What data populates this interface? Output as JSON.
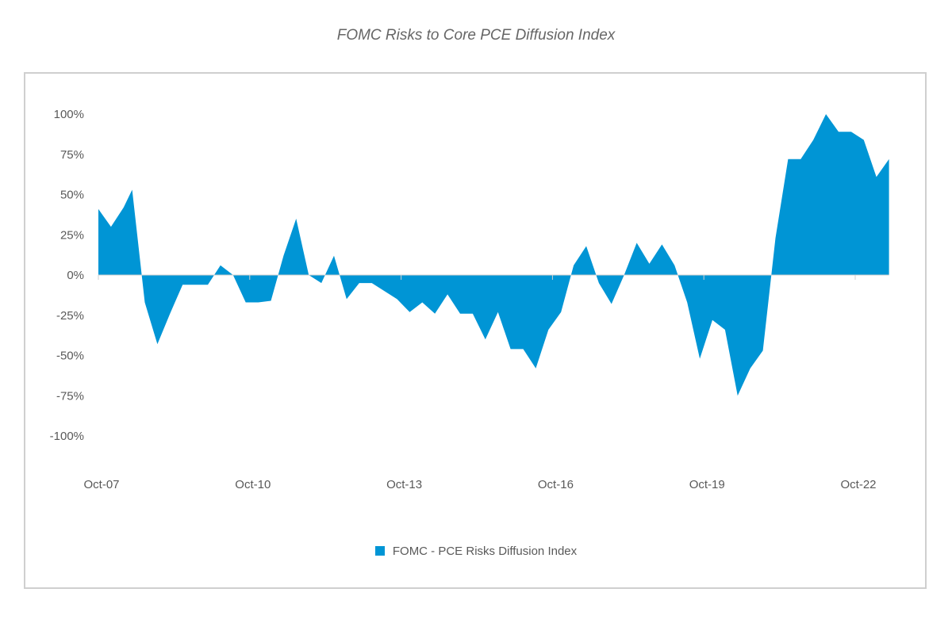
{
  "chart_data": {
    "type": "area",
    "title": "FOMC Risks to Core PCE Diffusion Index",
    "xlabel": "",
    "ylabel": "",
    "ylim": [
      -100,
      100
    ],
    "y_ticks": [
      "100%",
      "75%",
      "50%",
      "25%",
      "0%",
      "-25%",
      "-50%",
      "-75%",
      "-100%"
    ],
    "y_tick_values": [
      100,
      75,
      50,
      25,
      0,
      -25,
      -50,
      -75,
      -100
    ],
    "x_tick_labels": [
      "Oct-07",
      "Oct-10",
      "Oct-13",
      "Oct-16",
      "Oct-19",
      "Oct-22"
    ],
    "x_tick_values": [
      2007.75,
      2010.75,
      2013.75,
      2016.75,
      2019.75,
      2022.75
    ],
    "grid": false,
    "legend_position": "bottom",
    "colors": {
      "area": "#0095d5",
      "axis": "#d0d0d0",
      "text": "#595959"
    },
    "series": [
      {
        "name": "FOMC - PCE Risks Diffusion Index",
        "x": [
          2007.75,
          2008.0,
          2008.25,
          2008.42,
          2008.67,
          2008.92,
          2009.17,
          2009.42,
          2009.67,
          2009.92,
          2010.17,
          2010.42,
          2010.67,
          2010.92,
          2011.17,
          2011.42,
          2011.67,
          2011.92,
          2012.17,
          2012.42,
          2012.67,
          2012.92,
          2013.17,
          2013.42,
          2013.67,
          2013.92,
          2014.17,
          2014.42,
          2014.67,
          2014.92,
          2015.17,
          2015.42,
          2015.67,
          2015.92,
          2016.17,
          2016.42,
          2016.67,
          2016.92,
          2017.17,
          2017.42,
          2017.67,
          2017.92,
          2018.17,
          2018.42,
          2018.67,
          2018.92,
          2019.17,
          2019.42,
          2019.67,
          2019.92,
          2020.17,
          2020.42,
          2020.67,
          2020.92,
          2021.17,
          2021.42,
          2021.67,
          2021.92,
          2022.17,
          2022.42,
          2022.67,
          2022.92,
          2023.17,
          2023.42,
          2023.42,
          2007.75
        ],
        "values": [
          41,
          30,
          42,
          53,
          -17,
          -43,
          -24,
          -6,
          -6,
          -6,
          6,
          0,
          -17,
          -17,
          -16,
          12,
          35,
          0,
          -5,
          12,
          -15,
          -5,
          -5,
          -10,
          -15,
          -23,
          -17,
          -24,
          -12,
          -24,
          -24,
          -40,
          -23,
          -46,
          -46,
          -58,
          -34,
          -23,
          6,
          18,
          -5,
          -18,
          0,
          20,
          7,
          19,
          6,
          -17,
          -52,
          -28,
          -34,
          -75,
          -58,
          -47,
          23,
          72,
          72,
          84,
          100,
          89,
          89,
          84,
          61,
          72,
          0,
          0
        ],
        "values_note": ""
      }
    ],
    "legend": {
      "label": "FOMC - PCE Risks Diffusion Index"
    }
  }
}
